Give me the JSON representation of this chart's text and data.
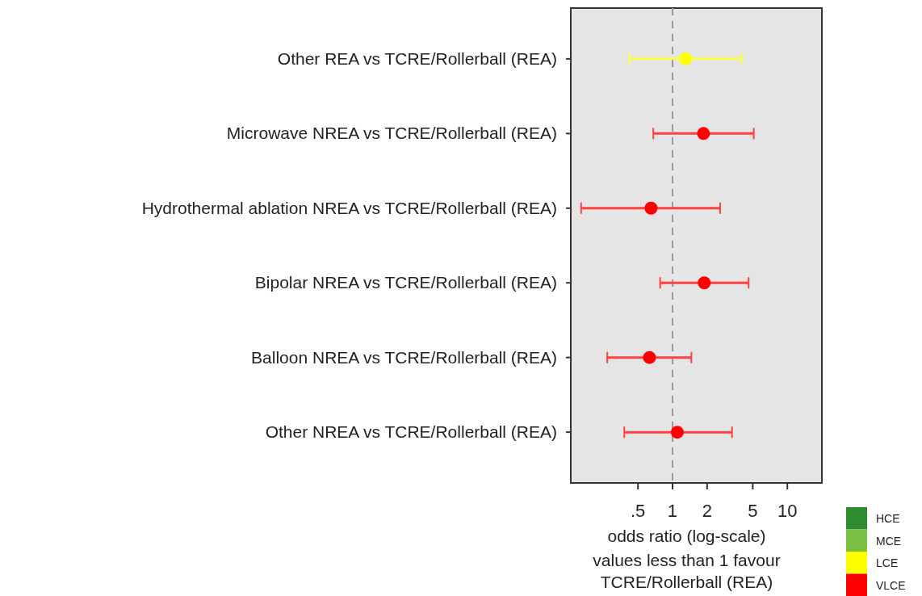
{
  "chart_data": {
    "type": "scatter",
    "orientation": "horizontal",
    "log": "x",
    "categories": [
      "Other REA vs TCRE/Rollerball (REA)",
      "Microwave NREA vs TCRE/Rollerball (REA)",
      "Hydrothermal ablation NREA vs TCRE/Rollerball (REA)",
      "Bipolar NREA vs TCRE/Rollerball (REA)",
      "Balloon NREA vs TCRE/Rollerball (REA)",
      "Other NREA vs TCRE/Rollerball (REA)"
    ],
    "series": [
      {
        "name": "HCE",
        "color": "#2e8b2e",
        "values": [
          null,
          null,
          null,
          null,
          null,
          null
        ],
        "errors": [
          null,
          null,
          null,
          null,
          null,
          null
        ]
      },
      {
        "name": "MCE",
        "color": "#7ac143",
        "values": [
          null,
          null,
          null,
          null,
          null,
          null
        ],
        "errors": [
          null,
          null,
          null,
          null,
          null,
          null
        ]
      },
      {
        "name": "LCE",
        "color": "#ffff00",
        "values": [
          1.3,
          null,
          null,
          null,
          null,
          null
        ],
        "errors": [
          [
            0.42,
            4.0
          ],
          null,
          null,
          null,
          null,
          null
        ]
      },
      {
        "name": "VLCE",
        "color": "#ff0000",
        "values": [
          null,
          1.86,
          0.65,
          1.89,
          0.63,
          1.1
        ],
        "errors": [
          null,
          [
            0.68,
            5.1
          ],
          [
            0.16,
            2.6
          ],
          [
            0.78,
            4.6
          ],
          [
            0.27,
            1.46
          ],
          [
            0.38,
            3.3
          ]
        ]
      }
    ],
    "marker": "circle",
    "xlim": [
      0.13,
      20
    ],
    "xticks": [
      {
        "value": 0.5,
        "label": ".5"
      },
      1,
      2,
      5,
      10
    ],
    "xlabel": "odds ratio (log-scale)",
    "annotations": [
      "values less than 1 favour TCRE/Rollerball (REA)"
    ],
    "ref_lines": [
      {
        "axis": "x",
        "value": 1,
        "color": "#999999",
        "line_style": "dashed"
      }
    ],
    "grid": false,
    "legend": "bottom right"
  }
}
